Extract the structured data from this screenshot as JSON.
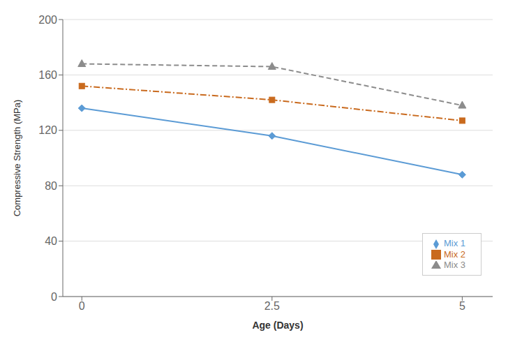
{
  "chart_data": {
    "type": "line",
    "x": [
      0,
      2.5,
      5
    ],
    "series": [
      {
        "name": "Mix 1",
        "color": "#5B9BD5",
        "values": [
          136,
          116,
          88
        ],
        "marker": "diamond",
        "line_style": "solid"
      },
      {
        "name": "Mix 2",
        "color": "#C96A1E",
        "values": [
          152,
          142,
          127
        ],
        "marker": "square",
        "line_style": "dashdot"
      },
      {
        "name": "Mix 3",
        "color": "#8C8C8C",
        "values": [
          168,
          166,
          138
        ],
        "marker": "triangle",
        "line_style": "dashed"
      }
    ],
    "xlabel": "Age (Days)",
    "ylabel": "Compressive Strength (MPa)",
    "xlim": [
      -0.25,
      5.4
    ],
    "ylim": [
      0,
      200
    ],
    "xticks": [
      0,
      2.5,
      5
    ],
    "yticks": [
      0,
      40,
      80,
      120,
      160,
      200
    ],
    "grid": "y",
    "legend": "lower right"
  }
}
